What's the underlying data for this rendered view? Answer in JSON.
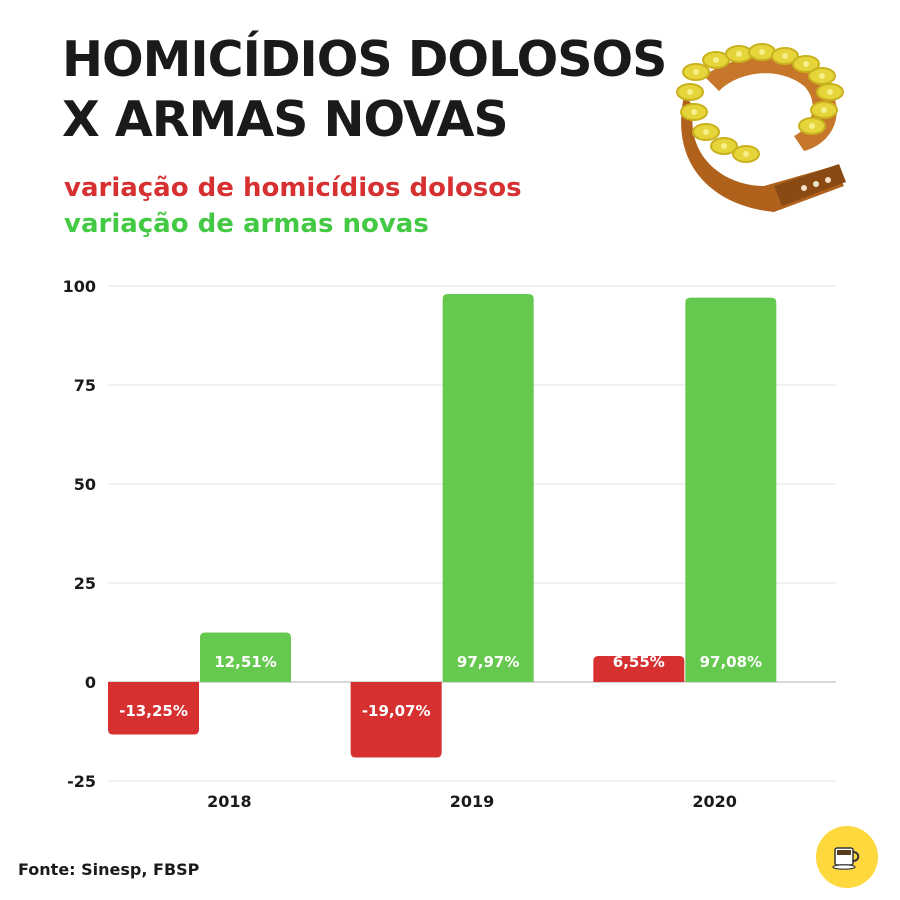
{
  "title_lines": [
    "HOMICÍDIOS DOLOSOS",
    "X ARMAS NOVAS"
  ],
  "legend": {
    "homicides": "variação de homicídios dolosos",
    "guns": "variação de armas novas"
  },
  "source": "Fonte: Sinesp, FBSP",
  "icons": {
    "illustration": "ammunition-belt-icon",
    "badge": "coffee-cup-icon"
  },
  "colors": {
    "homicides": "#d63031",
    "guns": "#66c94f",
    "grid": "#e3e3e3",
    "text": "#1a1a1a"
  },
  "chart_data": {
    "type": "bar",
    "categories": [
      "2018",
      "2019",
      "2020"
    ],
    "series": [
      {
        "name": "variação de homicídios dolosos",
        "values": [
          -13.25,
          -19.07,
          6.55
        ],
        "labels": [
          "-13,25%",
          "-19,07%",
          "6,55%"
        ],
        "color": "#d63031"
      },
      {
        "name": "variação de armas novas",
        "values": [
          12.51,
          97.97,
          97.08
        ],
        "labels": [
          "12,51%",
          "97,97%",
          "97,08%"
        ],
        "color": "#66c94f"
      }
    ],
    "ylim": [
      -25,
      100
    ],
    "yticks": [
      "100",
      "75",
      "50",
      "25",
      "0",
      "-25"
    ],
    "ytick_values": [
      100,
      75,
      50,
      25,
      0,
      -25
    ],
    "grid": true,
    "legend_position": "top-left"
  }
}
